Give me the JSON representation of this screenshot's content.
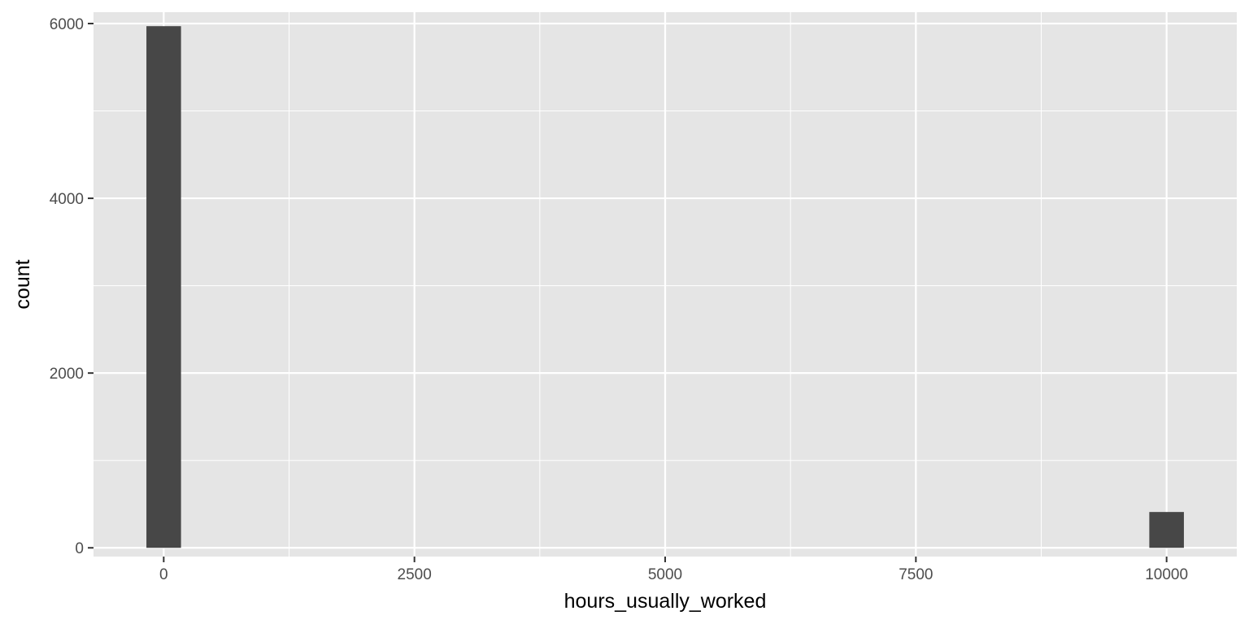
{
  "chart_data": {
    "type": "bar",
    "subtype": "histogram",
    "xlabel": "hours_usually_worked",
    "ylabel": "count",
    "xlim": [
      -700,
      10700
    ],
    "ylim": [
      -100,
      6130
    ],
    "x_ticks": [
      0,
      2500,
      5000,
      7500,
      10000
    ],
    "x_minor_ticks": [
      1250,
      3750,
      6250,
      8750
    ],
    "y_ticks": [
      0,
      2000,
      4000,
      6000
    ],
    "y_minor_ticks": [
      1000,
      3000,
      5000
    ],
    "bin_width": 345,
    "bins": [
      {
        "x": 0,
        "count": 5970
      },
      {
        "x": 10000,
        "count": 410
      }
    ],
    "grid": true,
    "legend": "none",
    "colors": {
      "bar": "#474747",
      "panel_background": "#e5e5e5",
      "grid": "#ffffff",
      "tick_label": "#4d4d4d",
      "axis_title": "#000000"
    }
  }
}
